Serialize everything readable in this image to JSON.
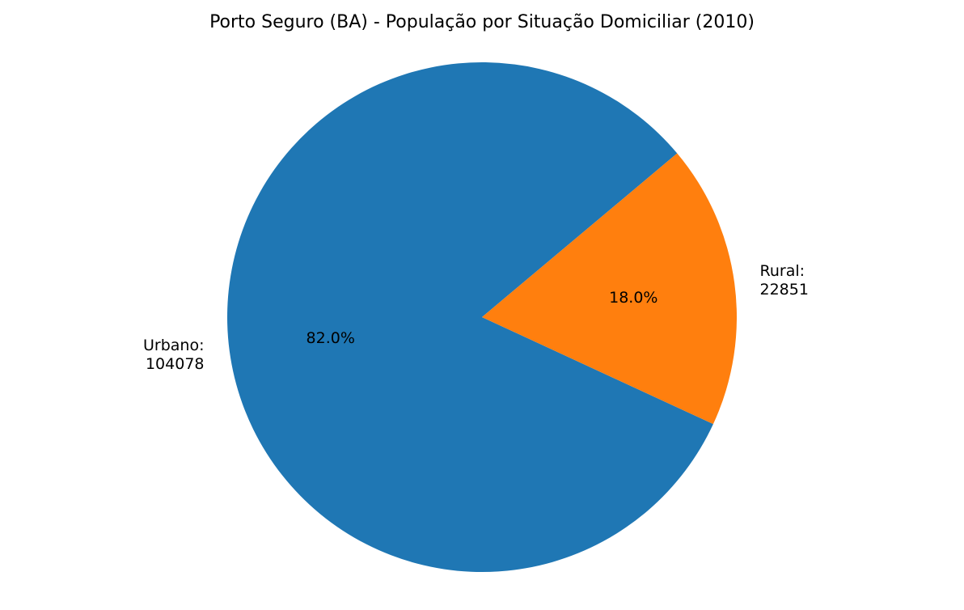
{
  "chart_data": {
    "type": "pie",
    "title": "Porto Seguro (BA) - População por Situação Domiciliar (2010)",
    "slices": [
      {
        "label": "Urbano",
        "value": 104078,
        "percent_label": "82.0%",
        "color": "#1f77b4"
      },
      {
        "label": "Rural",
        "value": 22851,
        "percent_label": "18.0%",
        "color": "#ff7f0e"
      }
    ],
    "start_angle_deg": 40,
    "direction": "counterclockwise",
    "legend": "none"
  }
}
